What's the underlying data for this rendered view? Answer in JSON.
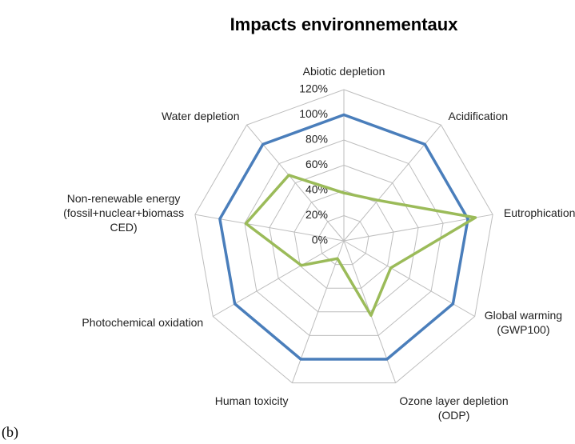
{
  "chart_data": {
    "type": "radar",
    "title": "Impacts environnementaux",
    "categories": [
      "Abiotic depletion",
      "Acidification",
      "Eutrophication",
      "Global warming\n(GWP100)",
      "Ozone layer depletion\n(ODP)",
      "Human toxicity",
      "Photochemical oxidation",
      "Non-renewable energy\n(fossil+nuclear+biomass\nCED)",
      "Water depletion"
    ],
    "series": [
      {
        "color": "#4a7ebb",
        "values": [
          100,
          100,
          100,
          100,
          100,
          100,
          100,
          100,
          100
        ]
      },
      {
        "color": "#9bbb59",
        "values": [
          38,
          42,
          106,
          43,
          63,
          15,
          39,
          79,
          68
        ]
      }
    ],
    "ylim": [
      0,
      120
    ],
    "yticks": [
      {
        "value": 0,
        "label": "0%"
      },
      {
        "value": 20,
        "label": "20%"
      },
      {
        "value": 40,
        "label": "40%"
      },
      {
        "value": 60,
        "label": "60%"
      },
      {
        "value": 80,
        "label": "80%"
      },
      {
        "value": 100,
        "label": "100%"
      },
      {
        "value": 120,
        "label": "120%"
      }
    ],
    "grid": true,
    "caption": "(b)"
  }
}
